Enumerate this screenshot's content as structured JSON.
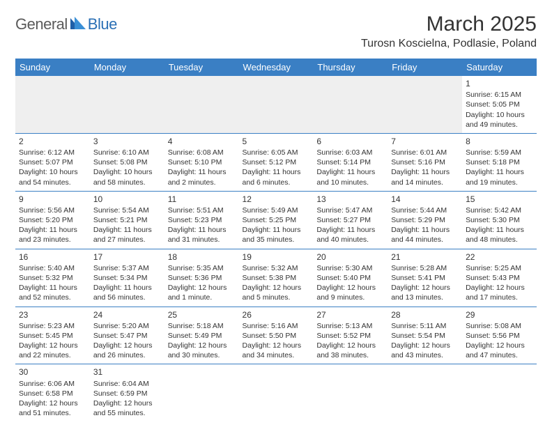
{
  "brand": {
    "general": "General",
    "blue": "Blue"
  },
  "title": "March 2025",
  "location": "Turosn Koscielna, Podlasie, Poland",
  "dayHeaders": [
    "Sunday",
    "Monday",
    "Tuesday",
    "Wednesday",
    "Thursday",
    "Friday",
    "Saturday"
  ],
  "colors": {
    "headerBg": "#3a7fc4",
    "headerText": "#ffffff",
    "blankBg": "#efefef",
    "border": "#3a7fc4",
    "logoGray": "#5a5a5a",
    "logoBlue": "#2a6fb5"
  },
  "weeks": [
    [
      null,
      null,
      null,
      null,
      null,
      null,
      {
        "n": "1",
        "sr": "Sunrise: 6:15 AM",
        "ss": "Sunset: 5:05 PM",
        "dl1": "Daylight: 10 hours",
        "dl2": "and 49 minutes."
      }
    ],
    [
      {
        "n": "2",
        "sr": "Sunrise: 6:12 AM",
        "ss": "Sunset: 5:07 PM",
        "dl1": "Daylight: 10 hours",
        "dl2": "and 54 minutes."
      },
      {
        "n": "3",
        "sr": "Sunrise: 6:10 AM",
        "ss": "Sunset: 5:08 PM",
        "dl1": "Daylight: 10 hours",
        "dl2": "and 58 minutes."
      },
      {
        "n": "4",
        "sr": "Sunrise: 6:08 AM",
        "ss": "Sunset: 5:10 PM",
        "dl1": "Daylight: 11 hours",
        "dl2": "and 2 minutes."
      },
      {
        "n": "5",
        "sr": "Sunrise: 6:05 AM",
        "ss": "Sunset: 5:12 PM",
        "dl1": "Daylight: 11 hours",
        "dl2": "and 6 minutes."
      },
      {
        "n": "6",
        "sr": "Sunrise: 6:03 AM",
        "ss": "Sunset: 5:14 PM",
        "dl1": "Daylight: 11 hours",
        "dl2": "and 10 minutes."
      },
      {
        "n": "7",
        "sr": "Sunrise: 6:01 AM",
        "ss": "Sunset: 5:16 PM",
        "dl1": "Daylight: 11 hours",
        "dl2": "and 14 minutes."
      },
      {
        "n": "8",
        "sr": "Sunrise: 5:59 AM",
        "ss": "Sunset: 5:18 PM",
        "dl1": "Daylight: 11 hours",
        "dl2": "and 19 minutes."
      }
    ],
    [
      {
        "n": "9",
        "sr": "Sunrise: 5:56 AM",
        "ss": "Sunset: 5:20 PM",
        "dl1": "Daylight: 11 hours",
        "dl2": "and 23 minutes."
      },
      {
        "n": "10",
        "sr": "Sunrise: 5:54 AM",
        "ss": "Sunset: 5:21 PM",
        "dl1": "Daylight: 11 hours",
        "dl2": "and 27 minutes."
      },
      {
        "n": "11",
        "sr": "Sunrise: 5:51 AM",
        "ss": "Sunset: 5:23 PM",
        "dl1": "Daylight: 11 hours",
        "dl2": "and 31 minutes."
      },
      {
        "n": "12",
        "sr": "Sunrise: 5:49 AM",
        "ss": "Sunset: 5:25 PM",
        "dl1": "Daylight: 11 hours",
        "dl2": "and 35 minutes."
      },
      {
        "n": "13",
        "sr": "Sunrise: 5:47 AM",
        "ss": "Sunset: 5:27 PM",
        "dl1": "Daylight: 11 hours",
        "dl2": "and 40 minutes."
      },
      {
        "n": "14",
        "sr": "Sunrise: 5:44 AM",
        "ss": "Sunset: 5:29 PM",
        "dl1": "Daylight: 11 hours",
        "dl2": "and 44 minutes."
      },
      {
        "n": "15",
        "sr": "Sunrise: 5:42 AM",
        "ss": "Sunset: 5:30 PM",
        "dl1": "Daylight: 11 hours",
        "dl2": "and 48 minutes."
      }
    ],
    [
      {
        "n": "16",
        "sr": "Sunrise: 5:40 AM",
        "ss": "Sunset: 5:32 PM",
        "dl1": "Daylight: 11 hours",
        "dl2": "and 52 minutes."
      },
      {
        "n": "17",
        "sr": "Sunrise: 5:37 AM",
        "ss": "Sunset: 5:34 PM",
        "dl1": "Daylight: 11 hours",
        "dl2": "and 56 minutes."
      },
      {
        "n": "18",
        "sr": "Sunrise: 5:35 AM",
        "ss": "Sunset: 5:36 PM",
        "dl1": "Daylight: 12 hours",
        "dl2": "and 1 minute."
      },
      {
        "n": "19",
        "sr": "Sunrise: 5:32 AM",
        "ss": "Sunset: 5:38 PM",
        "dl1": "Daylight: 12 hours",
        "dl2": "and 5 minutes."
      },
      {
        "n": "20",
        "sr": "Sunrise: 5:30 AM",
        "ss": "Sunset: 5:40 PM",
        "dl1": "Daylight: 12 hours",
        "dl2": "and 9 minutes."
      },
      {
        "n": "21",
        "sr": "Sunrise: 5:28 AM",
        "ss": "Sunset: 5:41 PM",
        "dl1": "Daylight: 12 hours",
        "dl2": "and 13 minutes."
      },
      {
        "n": "22",
        "sr": "Sunrise: 5:25 AM",
        "ss": "Sunset: 5:43 PM",
        "dl1": "Daylight: 12 hours",
        "dl2": "and 17 minutes."
      }
    ],
    [
      {
        "n": "23",
        "sr": "Sunrise: 5:23 AM",
        "ss": "Sunset: 5:45 PM",
        "dl1": "Daylight: 12 hours",
        "dl2": "and 22 minutes."
      },
      {
        "n": "24",
        "sr": "Sunrise: 5:20 AM",
        "ss": "Sunset: 5:47 PM",
        "dl1": "Daylight: 12 hours",
        "dl2": "and 26 minutes."
      },
      {
        "n": "25",
        "sr": "Sunrise: 5:18 AM",
        "ss": "Sunset: 5:49 PM",
        "dl1": "Daylight: 12 hours",
        "dl2": "and 30 minutes."
      },
      {
        "n": "26",
        "sr": "Sunrise: 5:16 AM",
        "ss": "Sunset: 5:50 PM",
        "dl1": "Daylight: 12 hours",
        "dl2": "and 34 minutes."
      },
      {
        "n": "27",
        "sr": "Sunrise: 5:13 AM",
        "ss": "Sunset: 5:52 PM",
        "dl1": "Daylight: 12 hours",
        "dl2": "and 38 minutes."
      },
      {
        "n": "28",
        "sr": "Sunrise: 5:11 AM",
        "ss": "Sunset: 5:54 PM",
        "dl1": "Daylight: 12 hours",
        "dl2": "and 43 minutes."
      },
      {
        "n": "29",
        "sr": "Sunrise: 5:08 AM",
        "ss": "Sunset: 5:56 PM",
        "dl1": "Daylight: 12 hours",
        "dl2": "and 47 minutes."
      }
    ],
    [
      {
        "n": "30",
        "sr": "Sunrise: 6:06 AM",
        "ss": "Sunset: 6:58 PM",
        "dl1": "Daylight: 12 hours",
        "dl2": "and 51 minutes."
      },
      {
        "n": "31",
        "sr": "Sunrise: 6:04 AM",
        "ss": "Sunset: 6:59 PM",
        "dl1": "Daylight: 12 hours",
        "dl2": "and 55 minutes."
      },
      null,
      null,
      null,
      null,
      null
    ]
  ]
}
